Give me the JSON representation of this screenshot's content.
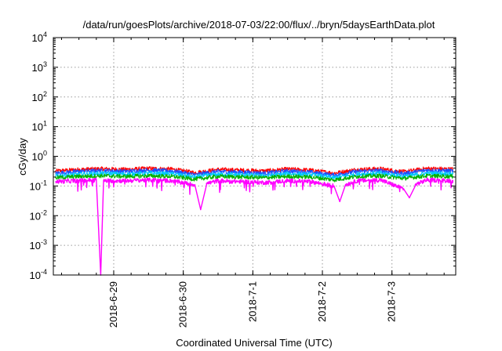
{
  "chart_data": {
    "type": "line",
    "title": "/data/run/goesPlots/archive/2018-07-03/22:00/flux/../bryn/5daysEarthData.plot",
    "xlabel": "Coordinated Universal Time (UTC)",
    "ylabel": "cGy/day",
    "yscale": "log",
    "ylim": [
      0.0001,
      10000
    ],
    "xlim": [
      "2018-06-28 03:10",
      "2018-07-03 22:00"
    ],
    "grid": true,
    "y_tick_labels": [
      {
        "base": "10",
        "exp": "-4",
        "value": 0.0001
      },
      {
        "base": "10",
        "exp": "-3",
        "value": 0.001
      },
      {
        "base": "10",
        "exp": "-2",
        "value": 0.01
      },
      {
        "base": "10",
        "exp": "-1",
        "value": 0.1
      },
      {
        "base": "10",
        "exp": "0",
        "value": 1
      },
      {
        "base": "10",
        "exp": "1",
        "value": 10
      },
      {
        "base": "10",
        "exp": "2",
        "value": 100
      },
      {
        "base": "10",
        "exp": "3",
        "value": 1000
      },
      {
        "base": "10",
        "exp": "4",
        "value": 10000
      }
    ],
    "x_tick_labels": [
      "2018-6-29",
      "2018-6-30",
      "2018-7-1",
      "2018-7-2",
      "2018-7-3"
    ],
    "x_ticks": [
      {
        "label": "2018-6-29",
        "day": 1
      },
      {
        "label": "2018-6-30",
        "day": 2
      },
      {
        "label": "2018-7-1",
        "day": 3
      },
      {
        "label": "2018-7-2",
        "day": 4
      },
      {
        "label": "2018-7-3",
        "day": 5
      }
    ],
    "series": [
      {
        "color": "#ff0000",
        "values": [
          [
            "2018-06-28 04:00",
            0.32
          ],
          [
            "2018-06-28 12:00",
            0.36
          ],
          [
            "2018-06-28 20:00",
            0.38
          ],
          [
            "2018-06-29 04:00",
            0.36
          ],
          [
            "2018-06-29 12:00",
            0.39
          ],
          [
            "2018-06-29 20:00",
            0.37
          ],
          [
            "2018-06-30 04:00",
            0.28
          ],
          [
            "2018-06-30 12:00",
            0.36
          ],
          [
            "2018-06-30 20:00",
            0.34
          ],
          [
            "2018-07-01 04:00",
            0.32
          ],
          [
            "2018-07-01 12:00",
            0.37
          ],
          [
            "2018-07-01 20:00",
            0.34
          ],
          [
            "2018-07-02 04:00",
            0.27
          ],
          [
            "2018-07-02 12:00",
            0.36
          ],
          [
            "2018-07-02 20:00",
            0.38
          ],
          [
            "2018-07-03 04:00",
            0.3
          ],
          [
            "2018-07-03 12:00",
            0.39
          ],
          [
            "2018-07-03 21:00",
            0.37
          ]
        ]
      },
      {
        "color": "#1e50ff",
        "values": [
          [
            "2018-06-28 04:00",
            0.27
          ],
          [
            "2018-06-28 12:00",
            0.31
          ],
          [
            "2018-06-28 20:00",
            0.33
          ],
          [
            "2018-06-29 04:00",
            0.31
          ],
          [
            "2018-06-29 12:00",
            0.34
          ],
          [
            "2018-06-29 20:00",
            0.32
          ],
          [
            "2018-06-30 04:00",
            0.24
          ],
          [
            "2018-06-30 12:00",
            0.31
          ],
          [
            "2018-06-30 20:00",
            0.29
          ],
          [
            "2018-07-01 04:00",
            0.27
          ],
          [
            "2018-07-01 12:00",
            0.32
          ],
          [
            "2018-07-01 20:00",
            0.29
          ],
          [
            "2018-07-02 04:00",
            0.23
          ],
          [
            "2018-07-02 12:00",
            0.31
          ],
          [
            "2018-07-02 20:00",
            0.33
          ],
          [
            "2018-07-03 04:00",
            0.26
          ],
          [
            "2018-07-03 12:00",
            0.34
          ],
          [
            "2018-07-03 21:00",
            0.32
          ]
        ]
      },
      {
        "color": "#00c8ff",
        "values": [
          [
            "2018-06-28 04:00",
            0.22
          ],
          [
            "2018-06-28 12:00",
            0.25
          ],
          [
            "2018-06-28 20:00",
            0.27
          ],
          [
            "2018-06-29 04:00",
            0.25
          ],
          [
            "2018-06-29 12:00",
            0.27
          ],
          [
            "2018-06-29 20:00",
            0.26
          ],
          [
            "2018-06-30 04:00",
            0.2
          ],
          [
            "2018-06-30 12:00",
            0.25
          ],
          [
            "2018-06-30 20:00",
            0.24
          ],
          [
            "2018-07-01 04:00",
            0.22
          ],
          [
            "2018-07-01 12:00",
            0.26
          ],
          [
            "2018-07-01 20:00",
            0.24
          ],
          [
            "2018-07-02 04:00",
            0.19
          ],
          [
            "2018-07-02 12:00",
            0.25
          ],
          [
            "2018-07-02 20:00",
            0.27
          ],
          [
            "2018-07-03 04:00",
            0.21
          ],
          [
            "2018-07-03 12:00",
            0.27
          ],
          [
            "2018-07-03 21:00",
            0.26
          ]
        ]
      },
      {
        "color": "#00b000",
        "values": [
          [
            "2018-06-28 04:00",
            0.19
          ],
          [
            "2018-06-28 12:00",
            0.21
          ],
          [
            "2018-06-28 20:00",
            0.22
          ],
          [
            "2018-06-29 04:00",
            0.21
          ],
          [
            "2018-06-29 12:00",
            0.22
          ],
          [
            "2018-06-29 20:00",
            0.21
          ],
          [
            "2018-06-30 04:00",
            0.17
          ],
          [
            "2018-06-30 12:00",
            0.21
          ],
          [
            "2018-06-30 20:00",
            0.2
          ],
          [
            "2018-07-01 04:00",
            0.19
          ],
          [
            "2018-07-01 12:00",
            0.21
          ],
          [
            "2018-07-01 20:00",
            0.2
          ],
          [
            "2018-07-02 04:00",
            0.16
          ],
          [
            "2018-07-02 12:00",
            0.21
          ],
          [
            "2018-07-02 20:00",
            0.22
          ],
          [
            "2018-07-03 04:00",
            0.18
          ],
          [
            "2018-07-03 12:00",
            0.22
          ],
          [
            "2018-07-03 21:00",
            0.21
          ]
        ]
      },
      {
        "color": "#ff00ff",
        "values": [
          [
            "2018-06-28 04:00",
            0.14
          ],
          [
            "2018-06-28 12:00",
            0.15
          ],
          [
            "2018-06-28 18:00",
            0.16
          ],
          [
            "2018-06-28 19:30",
            0.0001
          ],
          [
            "2018-06-28 20:30",
            0.15
          ],
          [
            "2018-06-29 04:00",
            0.15
          ],
          [
            "2018-06-29 12:00",
            0.16
          ],
          [
            "2018-06-29 20:00",
            0.15
          ],
          [
            "2018-06-30 04:00",
            0.11
          ],
          [
            "2018-06-30 06:00",
            0.016
          ],
          [
            "2018-06-30 08:00",
            0.12
          ],
          [
            "2018-06-30 12:00",
            0.15
          ],
          [
            "2018-06-30 20:00",
            0.14
          ],
          [
            "2018-07-01 04:00",
            0.13
          ],
          [
            "2018-07-01 12:00",
            0.15
          ],
          [
            "2018-07-01 20:00",
            0.14
          ],
          [
            "2018-07-02 04:00",
            0.1
          ],
          [
            "2018-07-02 06:00",
            0.03
          ],
          [
            "2018-07-02 08:00",
            0.11
          ],
          [
            "2018-07-02 12:00",
            0.15
          ],
          [
            "2018-07-02 20:00",
            0.16
          ],
          [
            "2018-07-03 04:00",
            0.08
          ],
          [
            "2018-07-03 06:00",
            0.04
          ],
          [
            "2018-07-03 08:00",
            0.11
          ],
          [
            "2018-07-03 12:00",
            0.16
          ],
          [
            "2018-07-03 21:00",
            0.15
          ]
        ]
      }
    ]
  }
}
